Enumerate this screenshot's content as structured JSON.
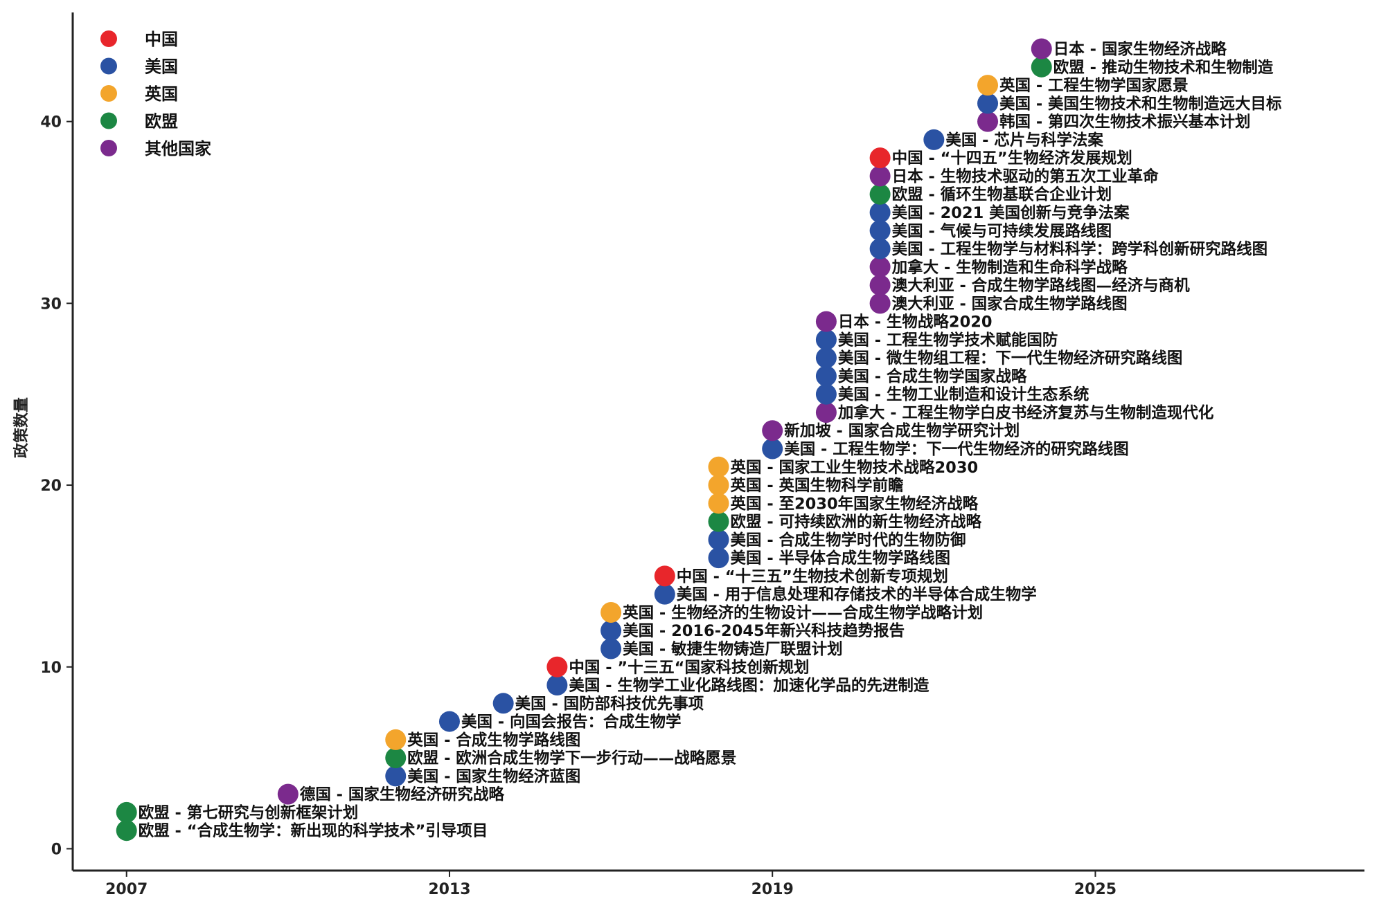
{
  "chart_data": {
    "type": "scatter",
    "title": "",
    "xlabel": "",
    "ylabel": "政策数量",
    "xlim": [
      2006,
      2030.0
    ],
    "ylim": [
      -1.2,
      46
    ],
    "xticks": [
      2007,
      2013,
      2019,
      2025
    ],
    "yticks": [
      0,
      10,
      20,
      30,
      40
    ],
    "grid": false,
    "legend_position": "top-left",
    "colors": {
      "中国": "#e8262b",
      "美国": "#2a52a3",
      "英国": "#f3a52c",
      "欧盟": "#1c8743",
      "其他国家": "#7b2a8d"
    },
    "legend": [
      {
        "label": "中国",
        "group": "中国"
      },
      {
        "label": "美国",
        "group": "美国"
      },
      {
        "label": "英国",
        "group": "英国"
      },
      {
        "label": "欧盟",
        "group": "欧盟"
      },
      {
        "label": "其他国家",
        "group": "其他国家"
      }
    ],
    "points": [
      {
        "x": 2007.0,
        "y": 1,
        "group": "欧盟",
        "label": "欧盟 - “合成生物学：新出现的科学技术”引导项目"
      },
      {
        "x": 2007.0,
        "y": 2,
        "group": "欧盟",
        "label": "欧盟 - 第七研究与创新框架计划"
      },
      {
        "x": 2010.0,
        "y": 3,
        "group": "其他国家",
        "label": "德国 - 国家生物经济研究战略"
      },
      {
        "x": 2012.0,
        "y": 4,
        "group": "美国",
        "label": "美国 - 国家生物经济蓝图"
      },
      {
        "x": 2012.0,
        "y": 5,
        "group": "欧盟",
        "label": "欧盟 - 欧洲合成生物学下一步行动——战略愿景"
      },
      {
        "x": 2012.0,
        "y": 6,
        "group": "英国",
        "label": "英国 - 合成生物学路线图"
      },
      {
        "x": 2013.0,
        "y": 7,
        "group": "美国",
        "label": "美国 - 向国会报告：合成生物学"
      },
      {
        "x": 2014.0,
        "y": 8,
        "group": "美国",
        "label": "美国 - 国防部科技优先事项"
      },
      {
        "x": 2015.0,
        "y": 9,
        "group": "美国",
        "label": "美国 - 生物学工业化路线图：加速化学品的先进制造"
      },
      {
        "x": 2015.0,
        "y": 10,
        "group": "中国",
        "label": "中国 - ”十三五“国家科技创新规划"
      },
      {
        "x": 2016.0,
        "y": 11,
        "group": "美国",
        "label": "美国 - 敏捷生物铸造厂联盟计划"
      },
      {
        "x": 2016.0,
        "y": 12,
        "group": "美国",
        "label": "美国 - 2016-2045年新兴科技趋势报告"
      },
      {
        "x": 2016.0,
        "y": 13,
        "group": "英国",
        "label": "英国 - 生物经济的生物设计——合成生物学战略计划"
      },
      {
        "x": 2017.0,
        "y": 14,
        "group": "美国",
        "label": "美国 - 用于信息处理和存储技术的半导体合成生物学"
      },
      {
        "x": 2017.0,
        "y": 15,
        "group": "中国",
        "label": "中国 - “十三五”生物技术创新专项规划"
      },
      {
        "x": 2018.0,
        "y": 16,
        "group": "美国",
        "label": "美国 - 半导体合成生物学路线图"
      },
      {
        "x": 2018.0,
        "y": 17,
        "group": "美国",
        "label": "美国 - 合成生物学时代的生物防御"
      },
      {
        "x": 2018.0,
        "y": 18,
        "group": "欧盟",
        "label": "欧盟 - 可持续欧洲的新生物经济战略"
      },
      {
        "x": 2018.0,
        "y": 19,
        "group": "英国",
        "label": "英国 - 至2030年国家生物经济战略"
      },
      {
        "x": 2018.0,
        "y": 20,
        "group": "英国",
        "label": "英国 - 英国生物科学前瞻"
      },
      {
        "x": 2018.0,
        "y": 21,
        "group": "英国",
        "label": "英国 - 国家工业生物技术战略2030"
      },
      {
        "x": 2019.0,
        "y": 22,
        "group": "美国",
        "label": "美国 - 工程生物学：下一代生物经济的研究路线图"
      },
      {
        "x": 2019.0,
        "y": 23,
        "group": "其他国家",
        "label": "新加坡 - 国家合成生物学研究计划"
      },
      {
        "x": 2020.0,
        "y": 24,
        "group": "其他国家",
        "label": "加拿大 - 工程生物学白皮书经济复苏与生物制造现代化"
      },
      {
        "x": 2020.0,
        "y": 25,
        "group": "美国",
        "label": "美国 - 生物工业制造和设计生态系统"
      },
      {
        "x": 2020.0,
        "y": 26,
        "group": "美国",
        "label": "美国 - 合成生物学国家战略"
      },
      {
        "x": 2020.0,
        "y": 27,
        "group": "美国",
        "label": "美国 - 微生物组工程：下一代生物经济研究路线图"
      },
      {
        "x": 2020.0,
        "y": 28,
        "group": "美国",
        "label": "美国 - 工程生物学技术赋能国防"
      },
      {
        "x": 2020.0,
        "y": 29,
        "group": "其他国家",
        "label": "日本 - 生物战略2020"
      },
      {
        "x": 2021.0,
        "y": 30,
        "group": "其他国家",
        "label": "澳大利亚 - 国家合成生物学路线图"
      },
      {
        "x": 2021.0,
        "y": 31,
        "group": "其他国家",
        "label": "澳大利亚 - 合成生物学路线图—经济与商机"
      },
      {
        "x": 2021.0,
        "y": 32,
        "group": "其他国家",
        "label": "加拿大 - 生物制造和生命科学战略"
      },
      {
        "x": 2021.0,
        "y": 33,
        "group": "美国",
        "label": "美国 - 工程生物学与材料科学：跨学科创新研究路线图"
      },
      {
        "x": 2021.0,
        "y": 34,
        "group": "美国",
        "label": "美国 - 气候与可持续发展路线图"
      },
      {
        "x": 2021.0,
        "y": 35,
        "group": "美国",
        "label": "美国 - 2021 美国创新与竞争法案"
      },
      {
        "x": 2021.0,
        "y": 36,
        "group": "欧盟",
        "label": "欧盟 - 循环生物基联合企业计划"
      },
      {
        "x": 2021.0,
        "y": 37,
        "group": "其他国家",
        "label": "日本 - 生物技术驱动的第五次工业革命"
      },
      {
        "x": 2021.0,
        "y": 38,
        "group": "中国",
        "label": "中国 - “十四五”生物经济发展规划"
      },
      {
        "x": 2022.0,
        "y": 39,
        "group": "美国",
        "label": "美国 - 芯片与科学法案"
      },
      {
        "x": 2023.0,
        "y": 40,
        "group": "其他国家",
        "label": "韩国 - 第四次生物技术振兴基本计划"
      },
      {
        "x": 2023.0,
        "y": 41,
        "group": "美国",
        "label": "美国 - 美国生物技术和生物制造远大目标"
      },
      {
        "x": 2023.0,
        "y": 42,
        "group": "英国",
        "label": "英国 - 工程生物学国家愿景"
      },
      {
        "x": 2024.0,
        "y": 43,
        "group": "欧盟",
        "label": "欧盟 - 推动生物技术和生物制造"
      },
      {
        "x": 2024.0,
        "y": 44,
        "group": "其他国家",
        "label": "日本 - 国家生物经济战略"
      }
    ]
  }
}
